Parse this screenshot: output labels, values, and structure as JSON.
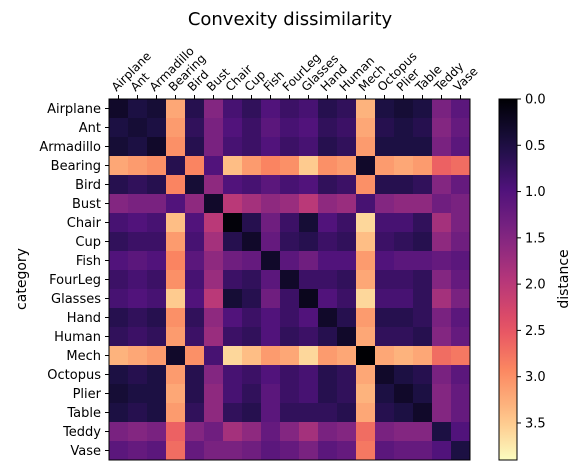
{
  "chart_data": {
    "type": "heatmap",
    "title": "Convexity dissimilarity",
    "ylabel": "category",
    "xlabel": "",
    "categories": [
      "Airplane",
      "Ant",
      "Armadillo",
      "Bearing",
      "Bird",
      "Bust",
      "Chair",
      "Cup",
      "Fish",
      "FourLeg",
      "Glasses",
      "Hand",
      "Human",
      "Mech",
      "Octopus",
      "Plier",
      "Table",
      "Teddy",
      "Vase"
    ],
    "colorbar": {
      "label": "distance",
      "min": 0.0,
      "max": 3.9,
      "reversed": true,
      "ticks": [
        0.0,
        0.5,
        1.0,
        1.5,
        2.0,
        2.5,
        3.0,
        3.5
      ],
      "tick_labels": [
        "0.0",
        "0.5",
        "1.0",
        "1.5",
        "2.0",
        "2.5",
        "3.0",
        "3.5"
      ]
    },
    "colormap": "magma",
    "values": [
      [
        0.3,
        0.5,
        0.4,
        3.2,
        0.6,
        1.5,
        0.9,
        0.7,
        1.0,
        0.8,
        0.9,
        0.6,
        0.7,
        3.3,
        0.5,
        0.4,
        0.5,
        1.4,
        1.1
      ],
      [
        0.5,
        0.4,
        0.5,
        3.1,
        0.7,
        1.4,
        1.0,
        0.8,
        1.1,
        0.9,
        1.0,
        0.7,
        0.8,
        3.2,
        0.6,
        0.5,
        0.6,
        1.5,
        1.2
      ],
      [
        0.4,
        0.5,
        0.3,
        3.0,
        0.6,
        1.4,
        0.9,
        0.8,
        1.0,
        0.8,
        0.9,
        0.6,
        0.7,
        3.1,
        0.5,
        0.5,
        0.5,
        1.4,
        1.1
      ],
      [
        3.2,
        3.1,
        3.0,
        0.6,
        2.9,
        1.0,
        3.4,
        3.1,
        2.9,
        3.0,
        3.5,
        3.0,
        3.1,
        0.3,
        3.1,
        3.2,
        3.1,
        2.6,
        2.7
      ],
      [
        0.6,
        0.7,
        0.6,
        2.9,
        0.4,
        1.6,
        1.0,
        0.9,
        1.1,
        0.9,
        1.0,
        0.7,
        0.8,
        3.0,
        0.6,
        0.6,
        0.7,
        1.5,
        1.2
      ],
      [
        1.5,
        1.4,
        1.4,
        1.0,
        1.6,
        0.3,
        2.0,
        1.8,
        1.6,
        1.7,
        2.0,
        1.6,
        1.7,
        0.9,
        1.5,
        1.6,
        1.6,
        1.3,
        1.4
      ],
      [
        0.9,
        1.0,
        0.9,
        3.4,
        1.0,
        2.0,
        0.05,
        0.6,
        1.3,
        0.8,
        0.4,
        1.0,
        0.8,
        3.6,
        0.9,
        0.9,
        0.7,
        1.8,
        1.4
      ],
      [
        0.7,
        0.8,
        0.8,
        3.1,
        0.9,
        1.8,
        0.6,
        0.3,
        1.2,
        0.7,
        0.6,
        0.8,
        0.7,
        3.4,
        0.8,
        0.7,
        0.6,
        1.6,
        1.3
      ],
      [
        1.0,
        1.1,
        1.0,
        2.9,
        1.1,
        1.6,
        1.3,
        1.2,
        0.3,
        1.1,
        1.3,
        1.0,
        1.0,
        3.1,
        1.0,
        1.1,
        1.1,
        1.2,
        1.1
      ],
      [
        0.8,
        0.9,
        0.8,
        3.0,
        0.9,
        1.7,
        0.8,
        0.7,
        1.1,
        0.3,
        0.8,
        0.8,
        0.7,
        3.2,
        0.8,
        0.8,
        0.7,
        1.5,
        1.2
      ],
      [
        0.9,
        1.0,
        0.9,
        3.5,
        1.0,
        2.0,
        0.4,
        0.6,
        1.3,
        0.8,
        0.2,
        1.0,
        0.8,
        3.6,
        0.9,
        0.9,
        0.7,
        1.8,
        1.4
      ],
      [
        0.6,
        0.7,
        0.6,
        3.0,
        0.7,
        1.6,
        1.0,
        0.8,
        1.0,
        0.8,
        1.0,
        0.3,
        0.6,
        3.1,
        0.6,
        0.6,
        0.7,
        1.4,
        1.1
      ],
      [
        0.7,
        0.8,
        0.7,
        3.1,
        0.8,
        1.7,
        0.8,
        0.7,
        1.0,
        0.7,
        0.8,
        0.6,
        0.3,
        3.2,
        0.7,
        0.7,
        0.6,
        1.5,
        1.2
      ],
      [
        3.3,
        3.2,
        3.1,
        0.3,
        3.0,
        0.9,
        3.6,
        3.4,
        3.1,
        3.2,
        3.6,
        3.1,
        3.2,
        0.0,
        3.2,
        3.3,
        3.2,
        2.7,
        2.8
      ],
      [
        0.5,
        0.6,
        0.5,
        3.1,
        0.6,
        1.5,
        0.9,
        0.8,
        1.0,
        0.8,
        0.9,
        0.6,
        0.7,
        3.2,
        0.3,
        0.5,
        0.6,
        1.4,
        1.1
      ],
      [
        0.4,
        0.5,
        0.5,
        3.2,
        0.6,
        1.6,
        0.9,
        0.7,
        1.1,
        0.8,
        0.9,
        0.6,
        0.7,
        3.3,
        0.5,
        0.3,
        0.5,
        1.5,
        1.2
      ],
      [
        0.5,
        0.6,
        0.5,
        3.1,
        0.7,
        1.6,
        0.7,
        0.6,
        1.1,
        0.7,
        0.7,
        0.7,
        0.6,
        3.2,
        0.6,
        0.5,
        0.3,
        1.5,
        1.2
      ],
      [
        1.4,
        1.5,
        1.4,
        2.6,
        1.5,
        1.3,
        1.8,
        1.6,
        1.2,
        1.5,
        1.8,
        1.4,
        1.5,
        2.7,
        1.4,
        1.5,
        1.5,
        0.5,
        1.0
      ],
      [
        1.1,
        1.2,
        1.1,
        2.7,
        1.2,
        1.4,
        1.4,
        1.3,
        1.1,
        1.2,
        1.4,
        1.1,
        1.2,
        2.8,
        1.1,
        1.2,
        1.2,
        1.0,
        0.5
      ]
    ]
  }
}
